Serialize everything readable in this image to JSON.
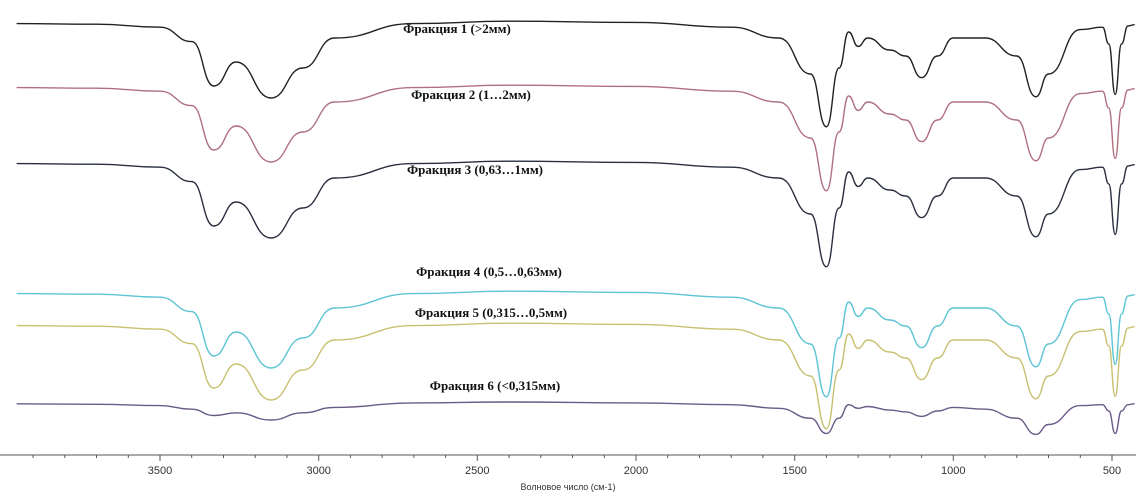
{
  "chart_data": {
    "type": "line",
    "title": "",
    "xlabel": "Волновое число (см-1)",
    "ylabel": "",
    "x_axis": {
      "min": 3950,
      "max": 420,
      "reversed": true,
      "ticks": [
        3500,
        3000,
        2500,
        2000,
        1500,
        1000,
        500
      ]
    },
    "grid": false,
    "legend": "none",
    "series": [
      {
        "name": "Фракция 1 (>2мм)",
        "color": "#222222",
        "x": [
          3950,
          3700,
          3500,
          3400,
          3330,
          3260,
          3150,
          3050,
          2950,
          2700,
          2400,
          2000,
          1700,
          1550,
          1450,
          1400,
          1360,
          1330,
          1300,
          1270,
          1200,
          1150,
          1100,
          1050,
          1000,
          900,
          800,
          740,
          700,
          600,
          530,
          510,
          490,
          470,
          450,
          430
        ],
        "y": [
          0.3,
          0.35,
          0.6,
          1.8,
          5.5,
          3.5,
          6.5,
          4.0,
          1.5,
          0.3,
          0.1,
          0.2,
          0.6,
          1.5,
          4.5,
          8.9,
          4.0,
          1.0,
          2.2,
          1.5,
          2.5,
          3.0,
          4.8,
          3.0,
          1.5,
          1.5,
          3.0,
          6.4,
          4.5,
          0.8,
          0.6,
          2.0,
          6.2,
          2.0,
          0.5,
          0.4
        ]
      },
      {
        "name": "Фракция 2 (1…2мм)",
        "color": "#b07080",
        "x": [
          3950,
          3700,
          3500,
          3400,
          3330,
          3260,
          3150,
          3050,
          2950,
          2700,
          2400,
          2000,
          1700,
          1550,
          1450,
          1400,
          1360,
          1330,
          1300,
          1270,
          1200,
          1150,
          1100,
          1050,
          1000,
          900,
          800,
          740,
          700,
          600,
          530,
          510,
          490,
          470,
          450,
          430
        ],
        "y": [
          0.3,
          0.35,
          0.6,
          1.8,
          5.5,
          3.5,
          6.5,
          4.0,
          1.5,
          0.3,
          0.1,
          0.2,
          0.6,
          1.5,
          4.5,
          8.9,
          4.0,
          1.0,
          2.2,
          1.5,
          2.5,
          3.0,
          4.8,
          3.0,
          1.5,
          1.5,
          3.0,
          6.4,
          4.5,
          0.8,
          0.6,
          2.0,
          6.2,
          2.0,
          0.5,
          0.4
        ]
      },
      {
        "name": "Фракция 3 (0,63…1мм)",
        "color": "#2a3040",
        "x": [
          3950,
          3700,
          3500,
          3400,
          3330,
          3260,
          3150,
          3050,
          2950,
          2700,
          2400,
          2000,
          1700,
          1550,
          1450,
          1400,
          1360,
          1330,
          1300,
          1270,
          1200,
          1150,
          1100,
          1050,
          1000,
          900,
          800,
          740,
          700,
          600,
          530,
          510,
          490,
          470,
          450,
          430
        ],
        "y": [
          0.3,
          0.35,
          0.6,
          1.8,
          5.5,
          3.5,
          6.5,
          4.0,
          1.5,
          0.3,
          0.1,
          0.2,
          0.6,
          1.5,
          4.5,
          8.9,
          4.0,
          1.0,
          2.2,
          1.5,
          2.5,
          3.0,
          4.8,
          3.0,
          1.5,
          1.5,
          3.0,
          6.4,
          4.5,
          0.8,
          0.6,
          2.0,
          6.2,
          2.0,
          0.5,
          0.4
        ]
      },
      {
        "name": "Фракция 4 (0,5…0,63мм)",
        "color": "#5cc4d4",
        "x": [
          3950,
          3700,
          3500,
          3400,
          3330,
          3260,
          3150,
          3050,
          2950,
          2700,
          2400,
          2000,
          1700,
          1550,
          1450,
          1400,
          1360,
          1330,
          1300,
          1270,
          1200,
          1150,
          1100,
          1050,
          1000,
          900,
          800,
          740,
          700,
          600,
          530,
          510,
          490,
          470,
          450,
          430
        ],
        "y": [
          0.3,
          0.35,
          0.6,
          1.8,
          5.5,
          3.5,
          6.5,
          4.0,
          1.5,
          0.3,
          0.1,
          0.2,
          0.6,
          1.5,
          4.5,
          8.9,
          4.0,
          1.0,
          2.2,
          1.5,
          2.5,
          3.0,
          4.8,
          3.0,
          1.5,
          1.5,
          3.0,
          6.4,
          4.5,
          0.8,
          0.6,
          2.0,
          6.2,
          2.0,
          0.5,
          0.4
        ]
      },
      {
        "name": "Фракция 5 (0,315…0,5мм)",
        "color": "#c8c070",
        "x": [
          3950,
          3700,
          3500,
          3400,
          3330,
          3260,
          3150,
          3050,
          2950,
          2700,
          2400,
          2000,
          1700,
          1550,
          1450,
          1400,
          1360,
          1330,
          1300,
          1270,
          1200,
          1150,
          1100,
          1050,
          1000,
          900,
          800,
          740,
          700,
          600,
          530,
          510,
          490,
          470,
          450,
          430
        ],
        "y": [
          0.3,
          0.35,
          0.6,
          1.8,
          5.5,
          3.5,
          6.5,
          4.0,
          1.5,
          0.3,
          0.1,
          0.2,
          0.6,
          1.5,
          4.5,
          8.9,
          4.0,
          1.0,
          2.2,
          1.5,
          2.5,
          3.0,
          4.8,
          3.0,
          1.5,
          1.5,
          3.0,
          6.4,
          4.5,
          0.8,
          0.6,
          2.0,
          6.2,
          2.0,
          0.5,
          0.4
        ]
      },
      {
        "name": "Фракция 6 (<0,315мм)",
        "color": "#6a5a88",
        "x": [
          3950,
          3700,
          3500,
          3400,
          3330,
          3260,
          3150,
          3050,
          2950,
          2700,
          2400,
          2000,
          1700,
          1550,
          1450,
          1400,
          1360,
          1330,
          1300,
          1270,
          1200,
          1150,
          1100,
          1050,
          1000,
          900,
          800,
          740,
          700,
          600,
          530,
          510,
          490,
          470,
          450,
          430
        ],
        "y": [
          0.2,
          0.25,
          0.4,
          0.8,
          1.5,
          1.2,
          2.0,
          1.2,
          0.6,
          0.1,
          0.0,
          0.1,
          0.3,
          0.7,
          1.8,
          3.5,
          1.8,
          0.3,
          0.7,
          0.5,
          0.9,
          1.1,
          1.6,
          1.0,
          0.6,
          0.8,
          1.8,
          3.6,
          2.5,
          0.4,
          0.3,
          1.0,
          3.5,
          1.0,
          0.3,
          0.2
        ]
      }
    ]
  }
}
